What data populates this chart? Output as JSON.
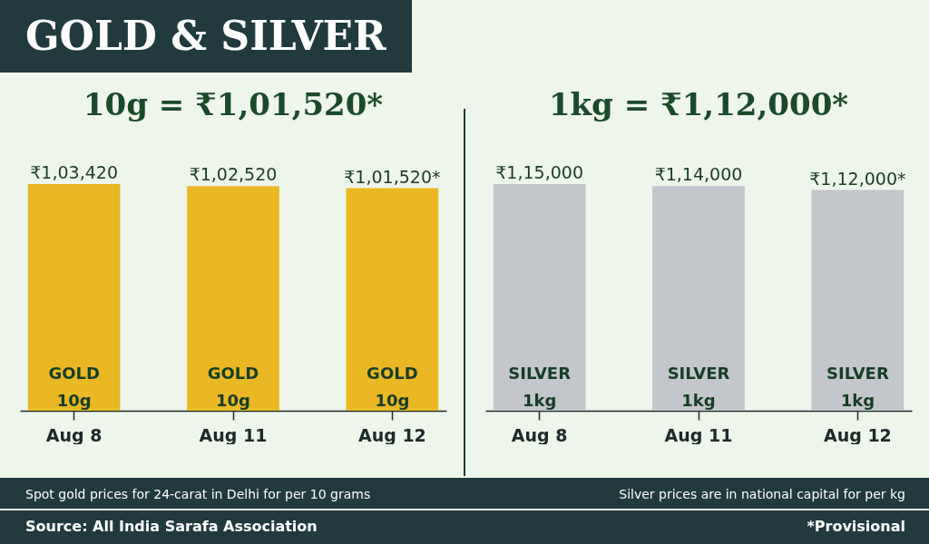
{
  "chart_data": [
    {
      "type": "bar",
      "title": "GOLD & SILVER",
      "subtitle": "10g = ₹1,01,520*",
      "categories": [
        "Aug 8",
        "Aug 11",
        "Aug 12"
      ],
      "values": [
        103420,
        102520,
        101520
      ],
      "color": "#e9b824",
      "tick_labels": "x",
      "value_labels": [
        "₹1,03,420",
        "₹1,02,520",
        "₹1,01,520*"
      ],
      "annotations": [
        "GOLD 10g",
        "GOLD 10g",
        "GOLD 10g",
        "Spot gold prices for 24-carat in Delhi for per 10 grams",
        "Source: All India Sarafa Association"
      ]
    },
    {
      "type": "bar",
      "subtitle": "1kg = ₹1,12,000*",
      "categories": [
        "Aug 8",
        "Aug 11",
        "Aug 12"
      ],
      "values": [
        115000,
        114000,
        112000
      ],
      "color": "#c3c6cb",
      "tick_labels": "x",
      "value_labels": [
        "₹1,15,000",
        "₹1,14,000",
        "₹1,12,000*"
      ],
      "annotations": [
        "SILVER 1kg",
        "SILVER 1kg",
        "SILVER 1kg",
        "Silver prices are in national capital for per kg",
        "*Provisional"
      ]
    }
  ]
}
